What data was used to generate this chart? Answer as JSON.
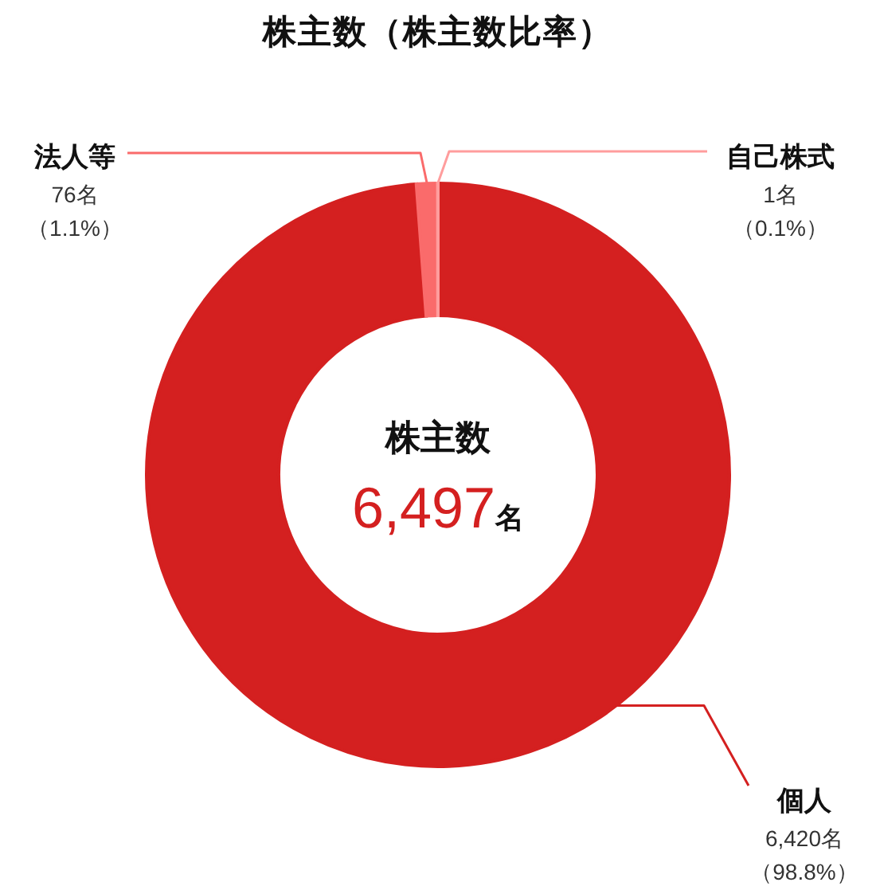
{
  "chart_data": {
    "type": "donut",
    "title": "株主数（株主数比率）",
    "categories": [
      "個人",
      "法人等",
      "自己株式"
    ],
    "values": [
      6420,
      76,
      1
    ],
    "colors": [
      "#d42020",
      "#fa6b6b",
      "#ff9d9d"
    ],
    "value_labels": [
      "6,420名（98.8%）",
      "76名（1.1%）",
      "1名（0.1%）"
    ],
    "annotations": [
      "株主数",
      "6,497名"
    ]
  }
}
